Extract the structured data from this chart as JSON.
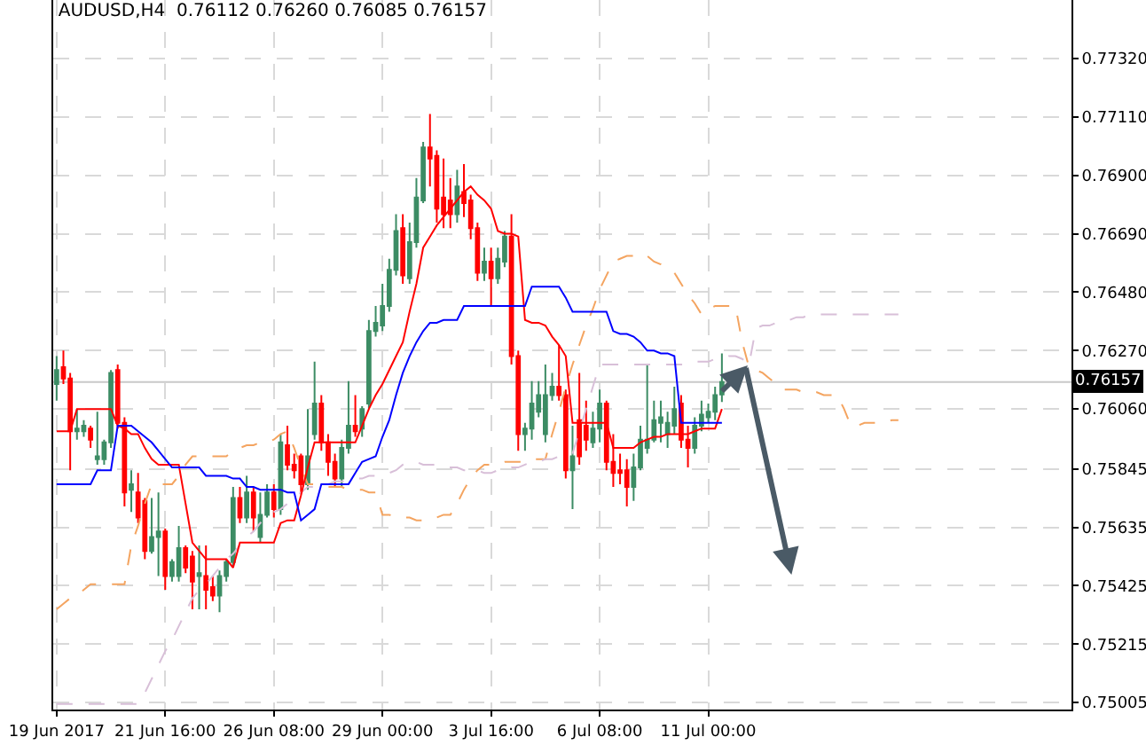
{
  "chart_data": {
    "type": "candlestick",
    "title": "AUDUSD,H4  0.76112 0.76260 0.76085 0.76157",
    "categories": [
      "19 Jun 2017",
      null,
      null,
      null,
      null,
      null,
      null,
      null,
      null,
      null,
      null,
      null,
      null,
      null,
      null,
      null,
      "21 Jun 16:00",
      null,
      null,
      null,
      null,
      null,
      null,
      null,
      null,
      null,
      null,
      null,
      null,
      null,
      null,
      null,
      "26 Jun 08:00",
      null,
      null,
      null,
      null,
      null,
      null,
      null,
      null,
      null,
      null,
      null,
      null,
      null,
      null,
      null,
      "29 Jun 00:00",
      null,
      null,
      null,
      null,
      null,
      null,
      null,
      null,
      null,
      null,
      null,
      null,
      null,
      null,
      null,
      "3 Jul 16:00",
      null,
      null,
      null,
      null,
      null,
      null,
      null,
      null,
      null,
      null,
      null,
      null,
      null,
      null,
      null,
      "6 Jul 08:00",
      null,
      null,
      null,
      null,
      null,
      null,
      null,
      null,
      null,
      null,
      null,
      null,
      null,
      null,
      null,
      "11 Jul 00:00",
      null,
      null,
      null,
      null,
      null,
      null,
      null,
      null,
      null,
      null,
      null,
      null,
      null,
      null,
      null,
      null,
      null,
      null,
      null,
      null,
      null,
      null,
      null,
      null,
      null,
      null,
      null,
      null,
      null,
      null,
      null,
      null,
      null,
      null,
      null,
      null,
      null,
      null,
      null,
      null,
      null,
      null,
      null,
      null,
      null,
      null,
      null,
      null,
      null,
      null,
      null,
      null,
      null
    ],
    "ohlc": [
      [
        0.7615,
        0.7625,
        0.7609,
        0.762
      ],
      [
        0.7621,
        0.7627,
        0.7615,
        0.7617
      ],
      [
        0.7617,
        0.7619,
        0.7584,
        0.7598
      ],
      [
        0.7598,
        0.7606,
        0.7595,
        0.7599
      ],
      [
        0.7598,
        0.7602,
        0.7596,
        0.76
      ],
      [
        0.7599,
        0.76,
        0.7592,
        0.7595
      ],
      [
        0.7588,
        0.7605,
        0.7586,
        0.7589
      ],
      [
        0.7588,
        0.7595,
        0.7586,
        0.7594
      ],
      [
        0.7594,
        0.762,
        0.7592,
        0.7619
      ],
      [
        0.762,
        0.7622,
        0.7599,
        0.7601
      ],
      [
        0.7601,
        0.7603,
        0.7571,
        0.7576
      ],
      [
        0.7577,
        0.7584,
        0.7569,
        0.7579
      ],
      [
        0.7576,
        0.7583,
        0.7565,
        0.7567
      ],
      [
        0.7573,
        0.7574,
        0.7552,
        0.7555
      ],
      [
        0.7555,
        0.7574,
        0.7554,
        0.756
      ],
      [
        0.756,
        0.7576,
        0.7546,
        0.7562
      ],
      [
        0.7562,
        0.7563,
        0.7541,
        0.7546
      ],
      [
        0.7546,
        0.7552,
        0.7544,
        0.7551
      ],
      [
        0.7546,
        0.7564,
        0.7544,
        0.7556
      ],
      [
        0.7556,
        0.7557,
        0.7547,
        0.7549
      ],
      [
        0.7553,
        0.7555,
        0.7534,
        0.7544
      ],
      [
        0.7546,
        0.7557,
        0.7534,
        0.7547
      ],
      [
        0.7546,
        0.7557,
        0.7534,
        0.7541
      ],
      [
        0.7542,
        0.7546,
        0.7537,
        0.7539
      ],
      [
        0.7539,
        0.7548,
        0.7533,
        0.7546
      ],
      [
        0.7546,
        0.7552,
        0.7544,
        0.7551
      ],
      [
        0.7551,
        0.7578,
        0.7549,
        0.7574
      ],
      [
        0.7574,
        0.7578,
        0.7565,
        0.7567
      ],
      [
        0.7567,
        0.7582,
        0.7565,
        0.7576
      ],
      [
        0.7576,
        0.7578,
        0.7562,
        0.7567
      ],
      [
        0.756,
        0.7576,
        0.7558,
        0.7568
      ],
      [
        0.7568,
        0.7579,
        0.7567,
        0.7576
      ],
      [
        0.7576,
        0.7579,
        0.7567,
        0.757
      ],
      [
        0.757,
        0.7597,
        0.7568,
        0.7594
      ],
      [
        0.7593,
        0.76,
        0.7584,
        0.7586
      ],
      [
        0.7586,
        0.759,
        0.7581,
        0.7584
      ],
      [
        0.7589,
        0.759,
        0.7576,
        0.7579
      ],
      [
        0.7579,
        0.7606,
        0.7577,
        0.7589
      ],
      [
        0.7597,
        0.7623,
        0.7595,
        0.7608
      ],
      [
        0.7608,
        0.7611,
        0.7591,
        0.7594
      ],
      [
        0.7594,
        0.7597,
        0.7582,
        0.7587
      ],
      [
        0.7587,
        0.759,
        0.7578,
        0.7581
      ],
      [
        0.7581,
        0.7595,
        0.7578,
        0.7592
      ],
      [
        0.7592,
        0.7616,
        0.759,
        0.76
      ],
      [
        0.76,
        0.7611,
        0.7596,
        0.7598
      ],
      [
        0.7599,
        0.7607,
        0.7596,
        0.7606
      ],
      [
        0.7608,
        0.7638,
        0.7606,
        0.7634
      ],
      [
        0.7634,
        0.7643,
        0.7632,
        0.7637
      ],
      [
        0.7636,
        0.7651,
        0.7634,
        0.7643
      ],
      [
        0.7643,
        0.766,
        0.7641,
        0.7656
      ],
      [
        0.7656,
        0.7676,
        0.7654,
        0.767
      ],
      [
        0.7671,
        0.7676,
        0.7651,
        0.7654
      ],
      [
        0.7653,
        0.7673,
        0.7651,
        0.7666
      ],
      [
        0.7666,
        0.7689,
        0.7664,
        0.7682
      ],
      [
        0.7681,
        0.7702,
        0.768,
        0.77
      ],
      [
        0.77,
        0.7712,
        0.7686,
        0.7696
      ],
      [
        0.7697,
        0.7699,
        0.7673,
        0.7678
      ],
      [
        0.7682,
        0.7696,
        0.7671,
        0.7676
      ],
      [
        0.7681,
        0.7689,
        0.7671,
        0.7676
      ],
      [
        0.7676,
        0.7692,
        0.7673,
        0.7686
      ],
      [
        0.7684,
        0.7694,
        0.7675,
        0.768
      ],
      [
        0.7681,
        0.7683,
        0.7667,
        0.7671
      ],
      [
        0.7671,
        0.7673,
        0.7652,
        0.7655
      ],
      [
        0.7655,
        0.7664,
        0.7652,
        0.7659
      ],
      [
        0.7659,
        0.7664,
        0.7643,
        0.7653
      ],
      [
        0.7653,
        0.7664,
        0.7651,
        0.766
      ],
      [
        0.7659,
        0.767,
        0.7657,
        0.7668
      ],
      [
        0.7668,
        0.7676,
        0.7622,
        0.7625
      ],
      [
        0.7625,
        0.7627,
        0.7591,
        0.7597
      ],
      [
        0.7597,
        0.7601,
        0.7591,
        0.7599
      ],
      [
        0.7599,
        0.7616,
        0.7595,
        0.7608
      ],
      [
        0.7605,
        0.7616,
        0.7603,
        0.7611
      ],
      [
        0.7597,
        0.7622,
        0.7594,
        0.7611
      ],
      [
        0.7611,
        0.7619,
        0.7609,
        0.7614
      ],
      [
        0.7614,
        0.7629,
        0.7609,
        0.7611
      ],
      [
        0.7611,
        0.7613,
        0.7581,
        0.7584
      ],
      [
        0.7584,
        0.76,
        0.757,
        0.7589
      ],
      [
        0.7602,
        0.7619,
        0.7586,
        0.7589
      ],
      [
        0.76,
        0.7609,
        0.7591,
        0.7595
      ],
      [
        0.7594,
        0.7605,
        0.7592,
        0.7599
      ],
      [
        0.7599,
        0.7613,
        0.7594,
        0.7608
      ],
      [
        0.7608,
        0.7609,
        0.7584,
        0.7587
      ],
      [
        0.7587,
        0.7597,
        0.7578,
        0.7583
      ],
      [
        0.7584,
        0.759,
        0.7579,
        0.7583
      ],
      [
        0.7584,
        0.7588,
        0.7571,
        0.7578
      ],
      [
        0.7578,
        0.759,
        0.7573,
        0.7585
      ],
      [
        0.7585,
        0.76,
        0.7584,
        0.7595
      ],
      [
        0.7592,
        0.7622,
        0.759,
        0.7595
      ],
      [
        0.7595,
        0.7609,
        0.7594,
        0.7602
      ],
      [
        0.7601,
        0.7609,
        0.7594,
        0.7603
      ],
      [
        0.7597,
        0.7605,
        0.7592,
        0.7601
      ],
      [
        0.76,
        0.7614,
        0.7597,
        0.7606
      ],
      [
        0.7608,
        0.7611,
        0.7592,
        0.7595
      ],
      [
        0.7595,
        0.76,
        0.7585,
        0.7592
      ],
      [
        0.7592,
        0.7603,
        0.759,
        0.76
      ],
      [
        0.76,
        0.7609,
        0.7598,
        0.7604
      ],
      [
        0.7603,
        0.7608,
        0.7601,
        0.7605
      ],
      [
        0.7605,
        0.7614,
        0.7602,
        0.7611
      ],
      [
        0.76112,
        0.7626,
        0.76085,
        0.76157
      ],
      null,
      null,
      null,
      null,
      null,
      null,
      null,
      null,
      null,
      null,
      null,
      null,
      null,
      null,
      null,
      null,
      null,
      null,
      null,
      null,
      null,
      null,
      null,
      null,
      null,
      null,
      null,
      null,
      null,
      null,
      null,
      null,
      null,
      null,
      null,
      null,
      null,
      null,
      null,
      null,
      null,
      null,
      null,
      null,
      null,
      null,
      null,
      null,
      null,
      null,
      null
    ],
    "colors": [
      "#3c8c64",
      "#ff0000",
      "#ff0000",
      "#3c8c64",
      "#3c8c64",
      "#ff0000",
      "#3c8c64",
      "#3c8c64",
      "#3c8c64",
      "#ff0000",
      "#ff0000",
      "#3c8c64",
      "#ff0000",
      "#ff0000",
      "#3c8c64",
      "#3c8c64",
      "#ff0000",
      "#3c8c64",
      "#3c8c64",
      "#ff0000",
      "#ff0000",
      "#3c8c64",
      "#ff0000",
      "#ff0000",
      "#3c8c64",
      "#3c8c64",
      "#3c8c64",
      "#ff0000",
      "#3c8c64",
      "#ff0000",
      "#3c8c64",
      "#3c8c64",
      "#ff0000",
      "#3c8c64",
      "#ff0000",
      "#ff0000",
      "#ff0000",
      "#3c8c64",
      "#3c8c64",
      "#ff0000",
      "#ff0000",
      "#ff0000",
      "#3c8c64",
      "#3c8c64",
      "#ff0000",
      "#3c8c64",
      "#3c8c64",
      "#3c8c64",
      "#3c8c64",
      "#3c8c64",
      "#3c8c64",
      "#ff0000",
      "#3c8c64",
      "#3c8c64",
      "#3c8c64",
      "#ff0000",
      "#ff0000",
      "#ff0000",
      "#ff0000",
      "#3c8c64",
      "#ff0000",
      "#ff0000",
      "#ff0000",
      "#3c8c64",
      "#ff0000",
      "#3c8c64",
      "#3c8c64",
      "#ff0000",
      "#ff0000",
      "#3c8c64",
      "#3c8c64",
      "#3c8c64",
      "#3c8c64",
      "#3c8c64",
      "#ff0000",
      "#ff0000",
      "#3c8c64",
      "#ff0000",
      "#ff0000",
      "#3c8c64",
      "#3c8c64",
      "#ff0000",
      "#ff0000",
      "#ff0000",
      "#ff0000",
      "#3c8c64",
      "#3c8c64",
      "#3c8c64",
      "#3c8c64",
      "#3c8c64",
      "#3c8c64",
      "#3c8c64",
      "#ff0000",
      "#ff0000",
      "#3c8c64",
      "#3c8c64",
      "#3c8c64",
      "#3c8c64",
      "#3c8c64",
      null,
      null,
      null,
      null,
      null,
      null,
      null,
      null,
      null,
      null,
      null,
      null,
      null,
      null,
      null,
      null,
      null,
      null,
      null,
      null,
      null,
      null,
      null,
      null,
      null,
      null,
      null,
      null,
      null,
      null,
      null,
      null,
      null,
      null,
      null,
      null,
      null,
      null,
      null,
      null,
      null,
      null,
      null,
      null,
      null,
      null,
      null,
      null,
      null,
      null,
      null
    ],
    "series": [
      {
        "type": "line",
        "color": "#f4a460",
        "line_style": "dashed",
        "values": [
          0.7534,
          0.7536,
          0.7538,
          0.7539,
          0.7541,
          0.7543,
          0.7543,
          0.7543,
          0.7543,
          0.7543,
          0.7543,
          0.7557,
          0.7564,
          0.7572,
          0.7579,
          0.7579,
          0.7579,
          0.7579,
          0.7582,
          0.7586,
          0.7589,
          0.7589,
          0.7589,
          0.7589,
          0.7589,
          0.7589,
          0.7591,
          0.7592,
          0.7593,
          0.7593,
          0.7594,
          0.7594,
          0.7595,
          0.7597,
          0.7598,
          0.7592,
          0.7585,
          0.7579,
          0.7579,
          0.7578,
          0.7578,
          0.7578,
          0.7578,
          0.7577,
          0.7577,
          0.7577,
          0.7576,
          0.7576,
          0.7568,
          0.7568,
          0.7567,
          0.7567,
          0.7567,
          0.7566,
          0.7566,
          0.7567,
          0.7567,
          0.7568,
          0.7568,
          0.7572,
          0.7577,
          0.7581,
          0.7584,
          0.7586,
          0.7586,
          0.7586,
          0.7587,
          0.7587,
          0.7587,
          0.7587,
          0.7588,
          0.7588,
          0.7588,
          0.7597,
          0.7605,
          0.7614,
          0.7622,
          0.7629,
          0.7636,
          0.7642,
          0.7649,
          0.7654,
          0.7659,
          0.766,
          0.7661,
          0.7661,
          0.7662,
          0.7661,
          0.7659,
          0.7658,
          0.7656,
          0.7655,
          0.7651,
          0.7647,
          0.7644,
          0.764,
          0.7642,
          0.7643,
          0.7643,
          0.7643,
          0.7643,
          0.763,
          0.7621,
          0.762,
          0.7619,
          0.7617,
          0.7615,
          0.7613,
          0.7613,
          0.7613,
          0.7612,
          0.7612,
          0.7612,
          0.7611,
          0.7611,
          0.7611,
          0.7606,
          0.76,
          0.76,
          0.7601,
          0.7601,
          0.7601,
          0.7601,
          0.7602,
          0.7602,
          null,
          null,
          null,
          null,
          null,
          null,
          null,
          null,
          null,
          null,
          null,
          null,
          null,
          null,
          null,
          null,
          null,
          null,
          null,
          null,
          null,
          null,
          null,
          null,
          null
        ]
      },
      {
        "type": "line",
        "color": "#d8bfd8",
        "line_style": "dashed",
        "values": [
          0.75,
          0.75,
          0.75,
          0.75,
          0.75,
          0.75,
          0.75,
          0.75,
          0.75,
          0.75,
          0.75,
          0.75,
          0.75,
          0.7504,
          0.7509,
          0.7514,
          0.7519,
          0.7523,
          0.7528,
          0.7533,
          0.7538,
          0.7541,
          0.7543,
          0.7546,
          0.7549,
          0.7552,
          0.7554,
          0.7557,
          0.756,
          0.7562,
          0.7565,
          0.7567,
          0.7569,
          0.757,
          0.7572,
          0.7574,
          0.7576,
          0.7578,
          0.7578,
          0.7579,
          0.7579,
          0.758,
          0.758,
          0.758,
          0.7581,
          0.7581,
          0.7582,
          0.7582,
          0.7583,
          0.7583,
          0.7584,
          0.7586,
          0.7587,
          0.7587,
          0.7586,
          0.7586,
          0.7586,
          0.7585,
          0.7585,
          0.7585,
          0.7584,
          0.7584,
          0.7584,
          0.7583,
          0.7583,
          0.7584,
          0.7584,
          0.7585,
          0.7585,
          0.7586,
          0.7587,
          0.7587,
          0.7588,
          0.7588,
          0.7589,
          0.759,
          0.759,
          0.7598,
          0.7606,
          0.7614,
          0.7622,
          0.7622,
          0.7622,
          0.7622,
          0.7622,
          0.7622,
          0.7622,
          0.7622,
          0.7622,
          0.7622,
          0.7622,
          0.7622,
          0.7622,
          0.7622,
          0.7623,
          0.7623,
          0.7623,
          0.7624,
          0.7624,
          0.7625,
          0.7625,
          0.7624,
          0.7622,
          0.7635,
          0.7636,
          0.7636,
          0.7637,
          0.7638,
          0.7638,
          0.7639,
          0.7639,
          0.764,
          0.764,
          0.764,
          0.764,
          0.764,
          0.764,
          0.764,
          0.764,
          0.764,
          0.764,
          0.764,
          0.764,
          0.764,
          0.764,
          null,
          null,
          null,
          null,
          null,
          null,
          null,
          null,
          null,
          null,
          null,
          null,
          null,
          null,
          null,
          null,
          null,
          null,
          null,
          null,
          null,
          null,
          null,
          null,
          null
        ]
      },
      {
        "type": "line",
        "color": "#ff0000",
        "line_style": "solid",
        "values": [
          0.7598,
          0.7598,
          0.7598,
          0.7606,
          0.7606,
          0.7606,
          0.7606,
          0.7606,
          0.7606,
          0.76,
          0.7599,
          0.7597,
          0.7597,
          0.7592,
          0.7588,
          0.7586,
          0.7586,
          0.7586,
          0.7586,
          0.7572,
          0.7558,
          0.7555,
          0.7552,
          0.7552,
          0.7552,
          0.7552,
          0.7549,
          0.7558,
          0.7558,
          0.7558,
          0.7558,
          0.7558,
          0.7558,
          0.7565,
          0.7566,
          0.7566,
          0.7575,
          0.7585,
          0.7594,
          0.7594,
          0.7594,
          0.7594,
          0.7594,
          0.7594,
          0.7594,
          0.76,
          0.7606,
          0.7611,
          0.7615,
          0.762,
          0.7625,
          0.763,
          0.7641,
          0.7651,
          0.7664,
          0.7668,
          0.7672,
          0.7675,
          0.7678,
          0.7681,
          0.7684,
          0.7686,
          0.7683,
          0.7681,
          0.7678,
          0.767,
          0.7669,
          0.7669,
          0.7668,
          0.7638,
          0.7637,
          0.7637,
          0.7636,
          0.7632,
          0.7629,
          0.7625,
          0.7601,
          0.7601,
          0.7601,
          0.7601,
          0.7601,
          0.7601,
          0.7592,
          0.7592,
          0.7592,
          0.7592,
          0.7594,
          0.7595,
          0.7596,
          0.7596,
          0.7597,
          0.7597,
          0.7597,
          0.7597,
          0.7598,
          0.7599,
          0.7599,
          0.7599,
          0.7606,
          null,
          null,
          null,
          null,
          null,
          null,
          null,
          null,
          null,
          null,
          null,
          null,
          null,
          null,
          null,
          null,
          null,
          null,
          null,
          null,
          null,
          null,
          null,
          null,
          null,
          null,
          null,
          null,
          null,
          null,
          null,
          null,
          null,
          null,
          null,
          null,
          null,
          null,
          null,
          null,
          null,
          null,
          null,
          null,
          null,
          null,
          null,
          null,
          null,
          null,
          null
        ]
      },
      {
        "type": "line",
        "color": "#0000ff",
        "line_style": "solid",
        "values": [
          0.7579,
          0.7579,
          0.7579,
          0.7579,
          0.7579,
          0.7579,
          0.7584,
          0.7584,
          0.7584,
          0.76,
          0.76,
          0.76,
          0.7598,
          0.7596,
          0.7594,
          0.7591,
          0.7588,
          0.7585,
          0.7585,
          0.7585,
          0.7585,
          0.7585,
          0.7582,
          0.7582,
          0.7582,
          0.7582,
          0.7581,
          0.7581,
          0.7578,
          0.7578,
          0.7577,
          0.7577,
          0.7577,
          0.7577,
          0.7576,
          0.7576,
          0.7566,
          0.7568,
          0.757,
          0.7579,
          0.7579,
          0.7579,
          0.7579,
          0.7579,
          0.7583,
          0.7587,
          0.7588,
          0.7589,
          0.7596,
          0.7602,
          0.7611,
          0.7619,
          0.7625,
          0.763,
          0.7634,
          0.7637,
          0.7637,
          0.7638,
          0.7638,
          0.7638,
          0.7643,
          0.7643,
          0.7643,
          0.7643,
          0.7643,
          0.7643,
          0.7643,
          0.7643,
          0.7643,
          0.7643,
          0.765,
          0.765,
          0.765,
          0.765,
          0.765,
          0.7646,
          0.7641,
          0.7641,
          0.7641,
          0.7641,
          0.7641,
          0.7641,
          0.7634,
          0.7633,
          0.7633,
          0.7632,
          0.763,
          0.7627,
          0.7627,
          0.7626,
          0.7626,
          0.7625,
          0.7601,
          0.7601,
          0.7601,
          0.7601,
          0.7601,
          0.7601,
          0.7601,
          null,
          null,
          null,
          null,
          null,
          null,
          null,
          null,
          null,
          null,
          null,
          null,
          null,
          null,
          null,
          null,
          null,
          null,
          null,
          null,
          null,
          null,
          null,
          null,
          null,
          null,
          null,
          null,
          null,
          null,
          null,
          null,
          null,
          null,
          null,
          null,
          null,
          null,
          null,
          null,
          null,
          null,
          null,
          null,
          null,
          null,
          null,
          null,
          null,
          null,
          null
        ]
      }
    ],
    "ref_lines": [
      {
        "axis": "y",
        "value": 0.76157,
        "label": "0.76157",
        "color": "#c8c8c8"
      }
    ],
    "ylim": [
      0.7498,
      0.7753
    ],
    "yticks": [
      {
        "value": 0.75005,
        "label": "0.75005"
      },
      {
        "value": 0.75215,
        "label": "0.75215"
      },
      {
        "value": 0.75425,
        "label": "0.75425"
      },
      {
        "value": 0.75635,
        "label": "0.75635"
      },
      {
        "value": 0.75845,
        "label": "0.75845"
      },
      {
        "value": 0.7606,
        "label": "0.76060"
      },
      {
        "value": 0.7627,
        "label": "0.76270"
      },
      {
        "value": 0.7648,
        "label": "0.76480"
      },
      {
        "value": 0.7669,
        "label": "0.76690"
      },
      {
        "value": 0.769,
        "label": "0.76900"
      },
      {
        "value": 0.7711,
        "label": "0.77110"
      },
      {
        "value": 0.7732,
        "label": "0.77320"
      }
    ],
    "grid": true
  }
}
